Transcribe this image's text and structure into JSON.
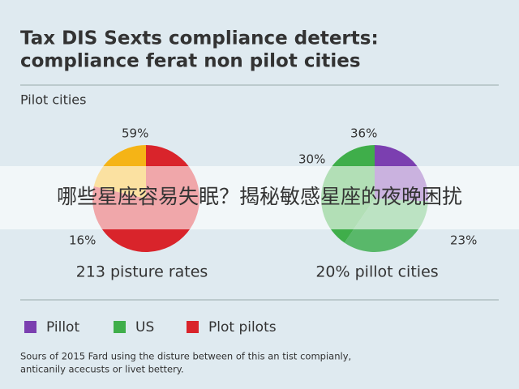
{
  "header": {
    "title_lines": [
      "Tax DIS Sexts compliance deterts:",
      "compliance ferat non pilot cities"
    ],
    "subtitle": "Pilot cities"
  },
  "chart_data": [
    {
      "type": "pie",
      "title": "213 pisture rates",
      "values": [
        59,
        16
      ],
      "value_labels": [
        "59%",
        "16%"
      ],
      "colors": [
        "#d9242b",
        "#f5b416"
      ]
    },
    {
      "type": "pie",
      "title": "20% pillot cities",
      "values": [
        23,
        30,
        36
      ],
      "value_labels": [
        "23%",
        "30%",
        "36%"
      ],
      "colors": [
        "#7b3fb0",
        "#59b86a",
        "#3fae4a"
      ]
    }
  ],
  "legend": [
    {
      "name": "Pillot",
      "color": "#7b3fb0"
    },
    {
      "name": "US",
      "color": "#3fae4a"
    },
    {
      "name": "Plot pilots",
      "color": "#d9242b"
    }
  ],
  "footnote": [
    "Sours of 2015 Fard using the disture between of this an tist compianly,",
    "anticanily acecusts or livet bettery."
  ],
  "overlay": {
    "text": "哪些星座容易失眠？揭秘敏感星座的夜晚困扰"
  }
}
